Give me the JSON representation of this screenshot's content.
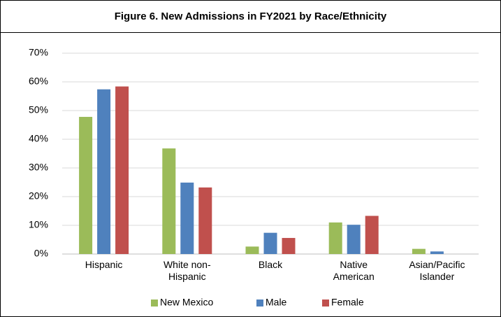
{
  "chart_data": {
    "type": "bar",
    "title": "Figure 6. New Admissions in FY2021 by Race/Ethnicity",
    "categories": [
      "Hispanic",
      "White non-Hispanic",
      "Black",
      "Native American",
      "Asian/Pacific Islander"
    ],
    "series": [
      {
        "name": "New Mexico",
        "color": "#9bbb59",
        "values": [
          47.8,
          36.8,
          2.6,
          11.0,
          1.8
        ]
      },
      {
        "name": "Male",
        "color": "#4f81bd",
        "values": [
          57.4,
          24.9,
          7.4,
          10.2,
          0.9
        ]
      },
      {
        "name": "Female",
        "color": "#c0504d",
        "values": [
          58.4,
          23.2,
          5.6,
          13.3,
          0
        ]
      }
    ],
    "ylim": [
      0,
      70
    ],
    "yticks": [
      {
        "value": 0,
        "label": "0%"
      },
      {
        "value": 10,
        "label": "10%"
      },
      {
        "value": 20,
        "label": "20%"
      },
      {
        "value": 30,
        "label": "30%"
      },
      {
        "value": 40,
        "label": "40%"
      },
      {
        "value": 50,
        "label": "50%"
      },
      {
        "value": 60,
        "label": "60%"
      },
      {
        "value": 70,
        "label": "70%"
      }
    ],
    "grid": true,
    "legend": "bottom"
  }
}
